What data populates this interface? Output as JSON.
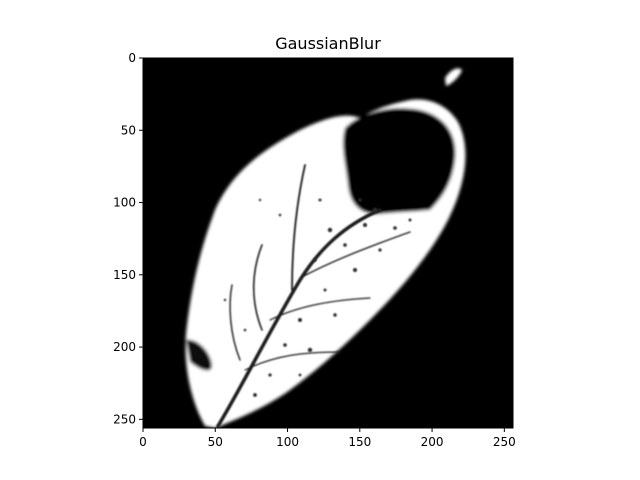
{
  "figure": {
    "title": "GaussianBlur"
  },
  "image": {
    "subject": "leaf",
    "filter": "GaussianBlur",
    "colormap": "gray",
    "background_color": "#000000",
    "foreground_color": "#ffffff",
    "x_range": [
      0,
      256
    ],
    "y_range": [
      256,
      0
    ]
  },
  "axes": {
    "x_ticks": [
      {
        "value": 0,
        "label": "0"
      },
      {
        "value": 50,
        "label": "50"
      },
      {
        "value": 100,
        "label": "100"
      },
      {
        "value": 150,
        "label": "150"
      },
      {
        "value": 200,
        "label": "200"
      },
      {
        "value": 250,
        "label": "250"
      }
    ],
    "y_ticks": [
      {
        "value": 0,
        "label": "0"
      },
      {
        "value": 50,
        "label": "50"
      },
      {
        "value": 100,
        "label": "100"
      },
      {
        "value": 150,
        "label": "150"
      },
      {
        "value": 200,
        "label": "200"
      },
      {
        "value": 250,
        "label": "250"
      }
    ]
  }
}
